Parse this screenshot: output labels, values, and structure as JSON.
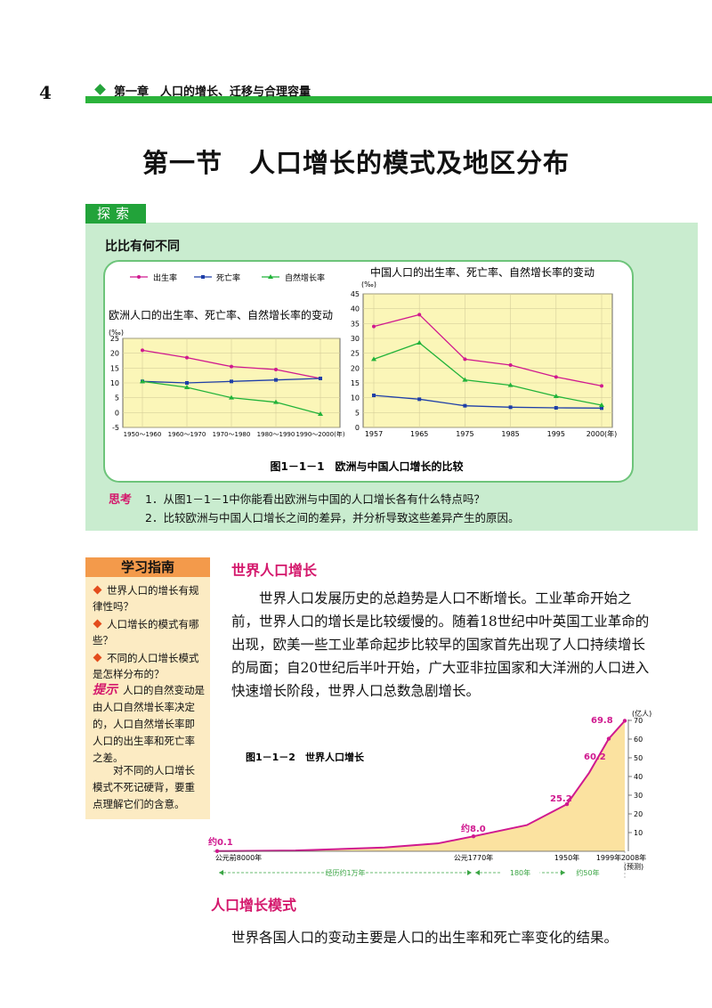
{
  "header": {
    "page_number": "4",
    "chapter": "第一章　人口的增长、迁移与合理容量"
  },
  "title": "第一节　人口增长的模式及地区分布",
  "explore": {
    "tab": "探索",
    "subtitle": "比比有何不同",
    "figure_caption": "图1－1－1　欧洲与中国人口增长的比较",
    "think_label": "思考",
    "think_items": [
      "1．从图1－1－1中你能看出欧洲与中国的人口增长各有什么特点吗？",
      "2．比较欧洲与中国人口增长之间的差异，并分析导致这些差异产生的原因。"
    ]
  },
  "guide": {
    "heading": "学习指南",
    "items": [
      "世界人口的增长有规律性吗？",
      "人口增长的模式有哪些？",
      "不同的人口增长模式是怎样分布的？"
    ],
    "hint_label": "提示",
    "hint_text": "人口的自然变动是由人口自然增长率决定的，人口自然增长率即人口的出生率和死亡率之差。",
    "hint_text2": "对不同的人口增长模式不死记硬背，要重点理解它们的含意。"
  },
  "section1": {
    "heading": "世界人口增长",
    "paragraph": "世界人口发展历史的总趋势是人口不断增长。工业革命开始之前，世界人口的增长是比较缓慢的。随着18世纪中叶英国工业革命的出现，欧美一些工业革命起步比较早的国家首先出现了人口持续增长的局面；自20世纪后半叶开始，广大亚非拉国家和大洋洲的人口进入快速增长阶段，世界人口总数急剧增长。"
  },
  "section2": {
    "heading": "人口增长模式",
    "paragraph": "世界各国人口的变动主要是人口的出生率和死亡率变化的结果。"
  },
  "colors": {
    "birth": "#d0198f",
    "death": "#1f3fa8",
    "natural": "#22b33a",
    "plot_bg": "#fbf6b8",
    "world_area": "#fbe2a0"
  },
  "chart_data": [
    {
      "type": "line",
      "title": "欧洲人口的出生率、死亡率、自然增长率的变动",
      "ylabel": "(‰)",
      "categories": [
        "1950～1960",
        "1960～1970",
        "1970～1980",
        "1980～1990",
        "1990～2000(年)"
      ],
      "ylim": [
        -5,
        25
      ],
      "yticks": [
        -5,
        0,
        5,
        10,
        15,
        20,
        25
      ],
      "legend": [
        "出生率",
        "死亡率",
        "自然增长率"
      ],
      "series": [
        {
          "name": "出生率",
          "values": [
            21,
            18.5,
            15.5,
            14.5,
            11.5
          ]
        },
        {
          "name": "死亡率",
          "values": [
            10.5,
            10,
            10.5,
            11,
            11.5
          ]
        },
        {
          "name": "自然增长率",
          "values": [
            10.5,
            8.5,
            5,
            3.5,
            -0.5
          ]
        }
      ]
    },
    {
      "type": "line",
      "title": "中国人口的出生率、死亡率、自然增长率的变动",
      "ylabel": "(‰)",
      "categories": [
        "1957",
        "1965",
        "1975",
        "1985",
        "1995",
        "2000(年)"
      ],
      "ylim": [
        0,
        45
      ],
      "yticks": [
        0,
        5,
        10,
        15,
        20,
        25,
        30,
        35,
        40,
        45
      ],
      "series": [
        {
          "name": "出生率",
          "values": [
            34,
            38,
            23,
            21,
            17,
            14
          ]
        },
        {
          "name": "死亡率",
          "values": [
            10.8,
            9.5,
            7.3,
            6.8,
            6.6,
            6.5
          ]
        },
        {
          "name": "自然增长率",
          "values": [
            23,
            28.5,
            16,
            14.2,
            10.5,
            7.5
          ]
        }
      ]
    },
    {
      "type": "area",
      "title": "图1－1－2　世界人口增长",
      "ylabel": "(亿人)",
      "yticks": [
        10,
        20,
        30,
        40,
        50,
        60,
        70
      ],
      "ylim": [
        0,
        70
      ],
      "points": [
        {
          "label": "约0.1",
          "year": "公元前8000年",
          "value": 0.1
        },
        {
          "label": "约8.0",
          "year": "公元1770年",
          "value": 8.0
        },
        {
          "label": "25.2",
          "year": "1950年",
          "value": 25.2
        },
        {
          "label": "60.2",
          "year": "1999年",
          "value": 60.2
        },
        {
          "label": "69.8",
          "year": "2008年",
          "value": 69.8
        }
      ],
      "forecast_note": "(预测)",
      "spans": [
        "经历约1万年",
        "180年",
        "约50年"
      ]
    }
  ]
}
